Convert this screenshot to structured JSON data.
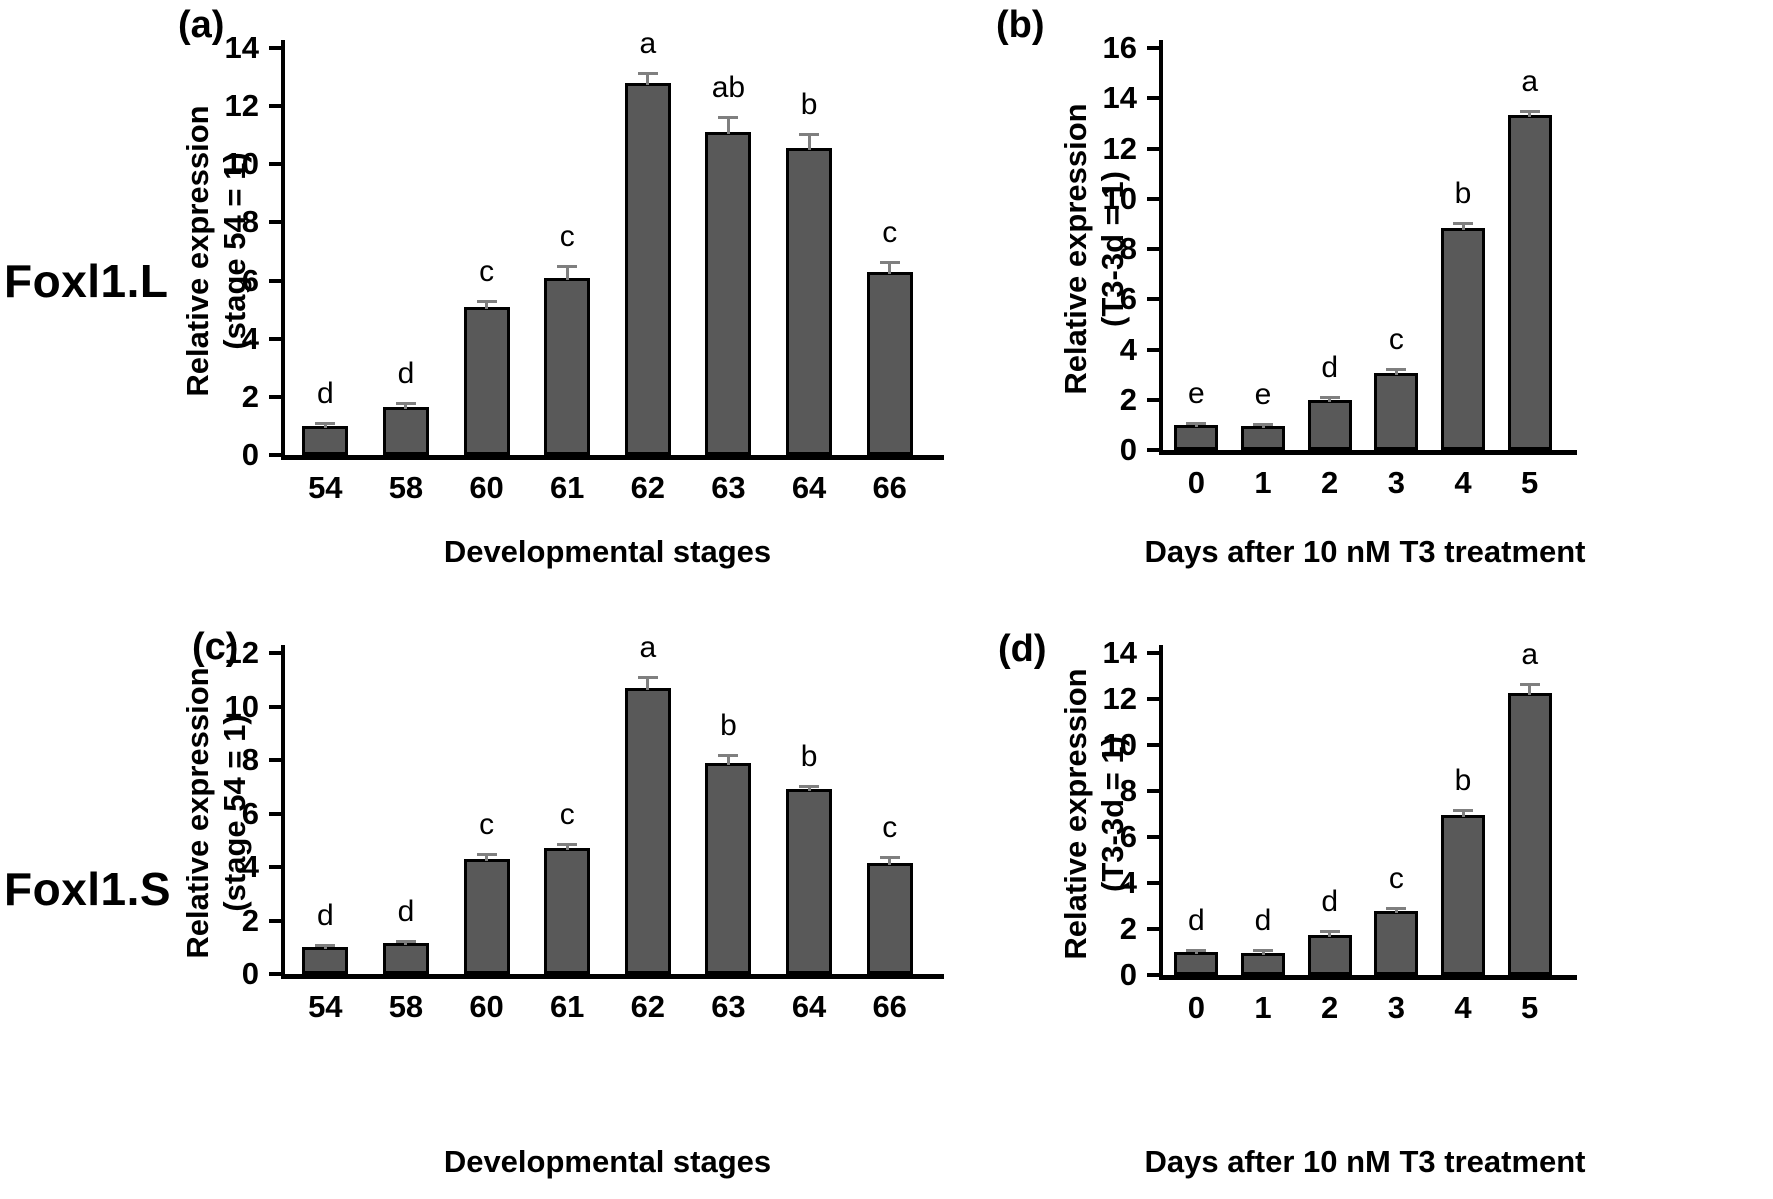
{
  "figure": {
    "row_labels": [
      "Foxl1.L",
      "Foxl1.S"
    ]
  },
  "style": {
    "bar_color": "#595959",
    "bar_border_color": "#000000",
    "error_bar_color": "#7f7f7f",
    "axis_color": "#000000",
    "background": "#ffffff"
  },
  "chart_data": [
    {
      "id": "a",
      "type": "bar",
      "panel_label": "(a)",
      "gene": "Foxl1.L",
      "xlabel": "Developmental stages",
      "ylabel_line1": "Relative expression",
      "ylabel_line2": "(stage 54 = 1)",
      "categories": [
        "54",
        "58",
        "60",
        "61",
        "62",
        "63",
        "64",
        "66"
      ],
      "values": [
        1.0,
        1.65,
        5.1,
        6.1,
        12.8,
        11.1,
        10.55,
        6.3
      ],
      "errors": [
        0.05,
        0.1,
        0.15,
        0.35,
        0.3,
        0.5,
        0.45,
        0.3
      ],
      "sig_letters": [
        "d",
        "d",
        "c",
        "c",
        "a",
        "ab",
        "b",
        "c"
      ],
      "ylim": [
        0,
        14
      ],
      "ytick_step": 2,
      "grid": false,
      "legend": null
    },
    {
      "id": "b",
      "type": "bar",
      "panel_label": "(b)",
      "gene": "Foxl1.L",
      "xlabel": "Days after 10 nM T3 treatment",
      "ylabel_line1": "Relative expression",
      "ylabel_line2": "(T3-3d = 1)",
      "categories": [
        "0",
        "1",
        "2",
        "3",
        "4",
        "5"
      ],
      "values": [
        1.0,
        0.95,
        2.0,
        3.05,
        8.85,
        13.35
      ],
      "errors": [
        0.05,
        0.05,
        0.06,
        0.12,
        0.15,
        0.12
      ],
      "sig_letters": [
        "e",
        "e",
        "d",
        "c",
        "b",
        "a"
      ],
      "ylim": [
        0,
        16
      ],
      "ytick_step": 2,
      "grid": false,
      "legend": null
    },
    {
      "id": "c",
      "type": "bar",
      "panel_label": "(c)",
      "gene": "Foxl1.S",
      "xlabel": "Developmental stages",
      "ylabel_line1": "Relative expression",
      "ylabel_line2": "(stage 54 = 1)",
      "categories": [
        "54",
        "58",
        "60",
        "61",
        "62",
        "63",
        "64",
        "66"
      ],
      "values": [
        1.0,
        1.15,
        4.3,
        4.7,
        10.7,
        7.9,
        6.9,
        4.15
      ],
      "errors": [
        0.05,
        0.05,
        0.15,
        0.12,
        0.35,
        0.25,
        0.1,
        0.2
      ],
      "sig_letters": [
        "d",
        "d",
        "c",
        "c",
        "a",
        "b",
        "b",
        "c"
      ],
      "ylim": [
        0,
        12
      ],
      "ytick_step": 2,
      "grid": false,
      "legend": null
    },
    {
      "id": "d",
      "type": "bar",
      "panel_label": "(d)",
      "gene": "Foxl1.S",
      "xlabel": "Days after 10 nM T3 treatment",
      "ylabel_line1": "Relative expression",
      "ylabel_line2": "(T3-3d = 1)",
      "categories": [
        "0",
        "1",
        "2",
        "3",
        "4",
        "5"
      ],
      "values": [
        1.0,
        0.97,
        1.75,
        2.8,
        6.95,
        12.25
      ],
      "errors": [
        0.04,
        0.06,
        0.1,
        0.08,
        0.18,
        0.35
      ],
      "sig_letters": [
        "d",
        "d",
        "d",
        "c",
        "b",
        "a"
      ],
      "ylim": [
        0,
        14
      ],
      "ytick_step": 2,
      "grid": false,
      "legend": null
    }
  ]
}
